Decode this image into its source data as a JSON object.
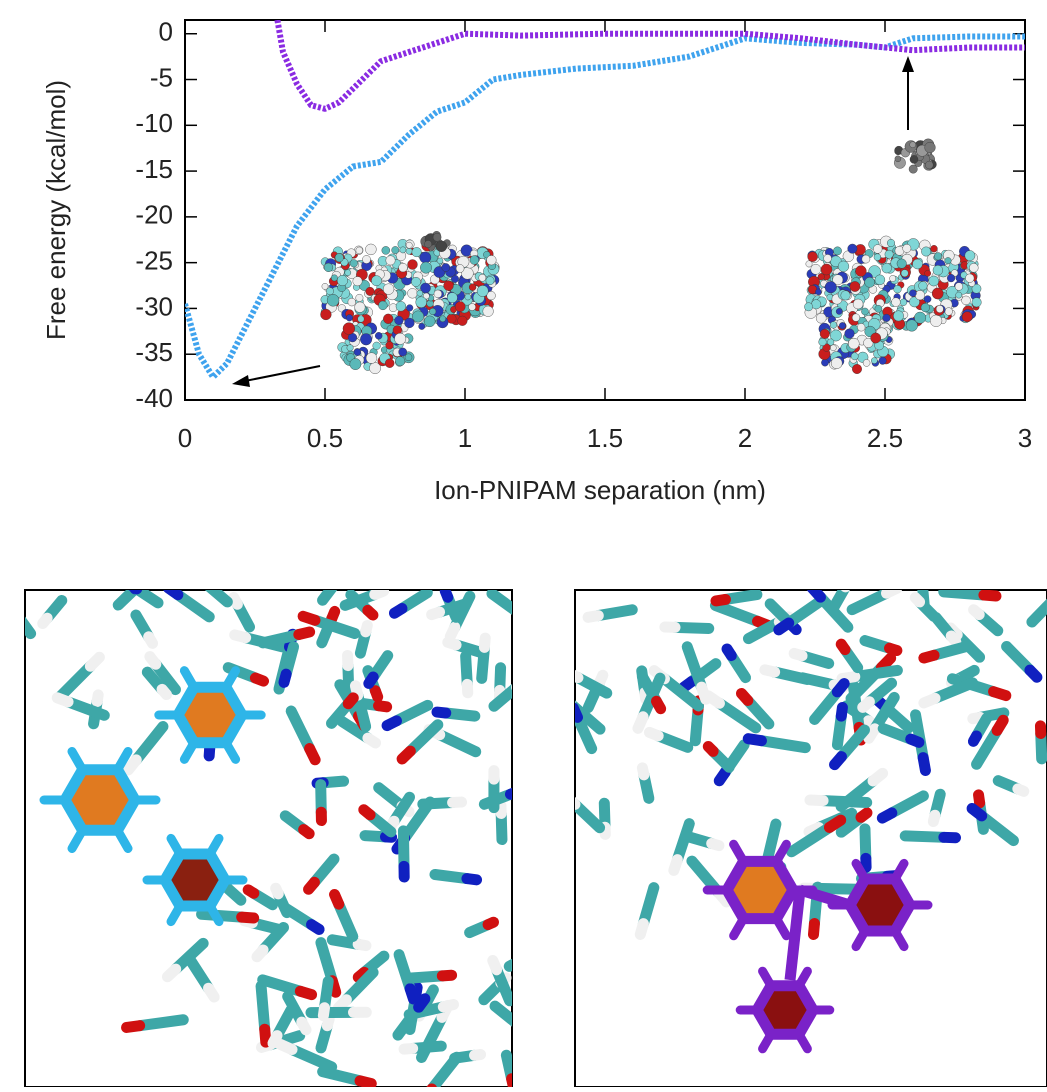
{
  "chart_data": {
    "type": "line",
    "xlabel": "Ion-PNIPAM separation (nm)",
    "ylabel": "Free energy (kcal/mol)",
    "xlim": [
      0,
      3
    ],
    "ylim": [
      -40,
      1.5
    ],
    "xticks": [
      0,
      0.5,
      1,
      1.5,
      2,
      2.5,
      3
    ],
    "yticks": [
      0,
      -5,
      -10,
      -15,
      -20,
      -25,
      -30,
      -35,
      -40
    ],
    "series": [
      {
        "color": "#3fa3ee",
        "x": [
          0,
          0.05,
          0.1,
          0.15,
          0.2,
          0.3,
          0.4,
          0.5,
          0.6,
          0.7,
          0.8,
          0.9,
          1.0,
          1.1,
          1.2,
          1.4,
          1.6,
          1.8,
          1.9,
          2.0,
          2.2,
          2.4,
          2.5,
          2.6,
          2.8,
          3.0
        ],
        "values": [
          -29.5,
          -35,
          -37.5,
          -36,
          -33,
          -27,
          -21,
          -17,
          -14.5,
          -14,
          -11,
          -8.5,
          -7.5,
          -5,
          -4.5,
          -3.8,
          -3.5,
          -2.5,
          -1.5,
          -0.5,
          -1,
          -1.2,
          -1.5,
          -0.5,
          -0.3,
          -0.3
        ]
      },
      {
        "color": "#8a2be2",
        "x": [
          0.33,
          0.35,
          0.4,
          0.45,
          0.5,
          0.55,
          0.6,
          0.7,
          0.8,
          0.9,
          1.0,
          1.2,
          1.5,
          1.8,
          2.0,
          2.2,
          2.4,
          2.6,
          2.8,
          3.0
        ],
        "values": [
          1.5,
          -2,
          -5.5,
          -7.8,
          -8.2,
          -7.5,
          -6,
          -3,
          -2,
          -1,
          0,
          -0.2,
          0,
          0,
          0,
          -0.5,
          -1.2,
          -1.8,
          -1.5,
          -1.5
        ]
      }
    ]
  }
}
